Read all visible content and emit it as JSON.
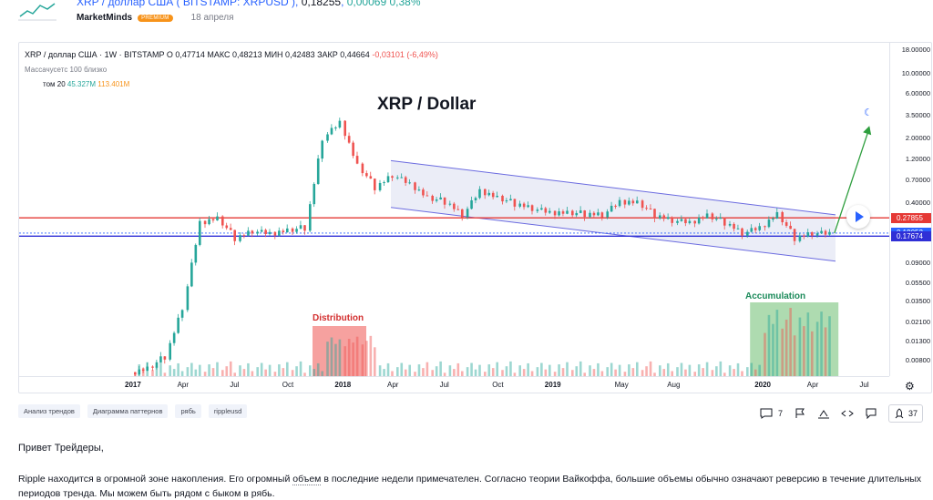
{
  "header": {
    "title_link": "XRP / доллар США ( BITSTAMP: XRPUSD )",
    "price": "0,18255",
    "change": "0,00069 0,38%",
    "author": "MarketMinds",
    "premium_badge": "PREMIUM",
    "date": "18 апреля"
  },
  "chart": {
    "symbol_line": "XRP / доллар США · 1W · BITSTAMP",
    "ohlc": [
      {
        "k": "О",
        "v": "0,47714"
      },
      {
        "k": "МАКС",
        "v": "0,48213"
      },
      {
        "k": "МИН",
        "v": "0,42483"
      },
      {
        "k": "ЗАКР",
        "v": "0,44664"
      }
    ],
    "change": "-0,03101 (-6,49%)",
    "volume_label": "Массачусетс 100 близко",
    "tom_label": "том 20",
    "tom_value1": "45.327M",
    "tom_value2": "113.401M",
    "title": "XRP / Dollar",
    "distribution_label": "Distribution",
    "accumulation_label": "Accumulation",
    "price_ticks": [
      "18.00000",
      "10.00000",
      "6.00000",
      "3.50000",
      "2.00000",
      "1.20000",
      "0.70000",
      "0.40000",
      "0.09000",
      "0.05500",
      "0.03500",
      "0.02100",
      "0.01300",
      "0.00800"
    ],
    "price_badges": [
      {
        "value": "0.27855",
        "color": "#e53935"
      },
      {
        "value": "0.19052",
        "color": "#2962ff"
      },
      {
        "value": "0.17674",
        "color": "#2f2fd6"
      }
    ],
    "time_ticks": [
      {
        "label": "2017",
        "bold": true
      },
      {
        "label": "Apr",
        "bold": false
      },
      {
        "label": "Jul",
        "bold": false
      },
      {
        "label": "Oct",
        "bold": false
      },
      {
        "label": "2018",
        "bold": true
      },
      {
        "label": "Apr",
        "bold": false
      },
      {
        "label": "Jul",
        "bold": false
      },
      {
        "label": "Oct",
        "bold": false
      },
      {
        "label": "2019",
        "bold": true
      },
      {
        "label": "May",
        "bold": false
      },
      {
        "label": "Aug",
        "bold": false
      },
      {
        "label": "2020",
        "bold": true
      },
      {
        "label": "Apr",
        "bold": false
      },
      {
        "label": "Jul",
        "bold": false
      }
    ],
    "colors": {
      "up": "#26a69a",
      "down": "#ef5350",
      "resistance": "#e53935",
      "support": "#2f2fd6",
      "channel": "#6b6be0",
      "arrow": "#2e9e3e"
    }
  },
  "chart_data": {
    "type": "candlestick",
    "title": "XRP / Dollar",
    "ylabel": "",
    "y_scale": "log",
    "ylim": [
      0.006,
      20
    ],
    "x_ticks": [
      "2017",
      "Apr",
      "Jul",
      "Oct",
      "2018",
      "Apr",
      "Jul",
      "Oct",
      "2019",
      "May",
      "Aug",
      "2020",
      "Apr",
      "Jul"
    ],
    "series": [
      {
        "points": [
          {
            "x": "2017-01",
            "close": 0.006
          },
          {
            "x": "2017-02",
            "close": 0.0065
          },
          {
            "x": "2017-03",
            "close": 0.009
          },
          {
            "x": "2017-04",
            "close": 0.03
          },
          {
            "x": "2017-05",
            "close": 0.25
          },
          {
            "x": "2017-06",
            "close": 0.27
          },
          {
            "x": "2017-07",
            "close": 0.17
          },
          {
            "x": "2017-08",
            "close": 0.2
          },
          {
            "x": "2017-09",
            "close": 0.19
          },
          {
            "x": "2017-10",
            "close": 0.2
          },
          {
            "x": "2017-11",
            "close": 0.22
          },
          {
            "x": "2017-12",
            "close": 2.0
          },
          {
            "x": "2018-01",
            "close": 3.0
          },
          {
            "x": "2018-02",
            "close": 1.0
          },
          {
            "x": "2018-03",
            "close": 0.6
          },
          {
            "x": "2018-04",
            "close": 0.8
          },
          {
            "x": "2018-05",
            "close": 0.65
          },
          {
            "x": "2018-06",
            "close": 0.45
          },
          {
            "x": "2018-07",
            "close": 0.42
          },
          {
            "x": "2018-08",
            "close": 0.3
          },
          {
            "x": "2018-09",
            "close": 0.55
          },
          {
            "x": "2018-10",
            "close": 0.45
          },
          {
            "x": "2018-11",
            "close": 0.4
          },
          {
            "x": "2018-12",
            "close": 0.35
          },
          {
            "x": "2019-01",
            "close": 0.32
          },
          {
            "x": "2019-02",
            "close": 0.31
          },
          {
            "x": "2019-03",
            "close": 0.31
          },
          {
            "x": "2019-04",
            "close": 0.3
          },
          {
            "x": "2019-05",
            "close": 0.42
          },
          {
            "x": "2019-06",
            "close": 0.4
          },
          {
            "x": "2019-07",
            "close": 0.3
          },
          {
            "x": "2019-08",
            "close": 0.26
          },
          {
            "x": "2019-09",
            "close": 0.25
          },
          {
            "x": "2019-10",
            "close": 0.29
          },
          {
            "x": "2019-11",
            "close": 0.25
          },
          {
            "x": "2019-12",
            "close": 0.19
          },
          {
            "x": "2020-01",
            "close": 0.22
          },
          {
            "x": "2020-02",
            "close": 0.3
          },
          {
            "x": "2020-03",
            "close": 0.17
          },
          {
            "x": "2020-04",
            "close": 0.19
          }
        ]
      }
    ],
    "horizontal_lines": [
      0.27855,
      0.19052,
      0.17674
    ],
    "annotations": [
      "XRP / Dollar",
      "Distribution",
      "Accumulation"
    ]
  },
  "tags": [
    "Анализ трендов",
    "Диаграмма паттернов",
    "рябь",
    "rippleusd"
  ],
  "actions": {
    "comments_count": "7",
    "likes_count": "37"
  },
  "post": {
    "greeting": "Привет Трейдеры,",
    "text_before": "Ripple находится в огромной зоне накопления. Его огромный ",
    "text_underlined": "объем",
    "text_after": " в последние недели примечателен. Согласно теории Вайкоффа, большие объемы обычно означают реверсию в течение длительных периодов тренда. Мы можем быть рядом с быком в рябь."
  }
}
